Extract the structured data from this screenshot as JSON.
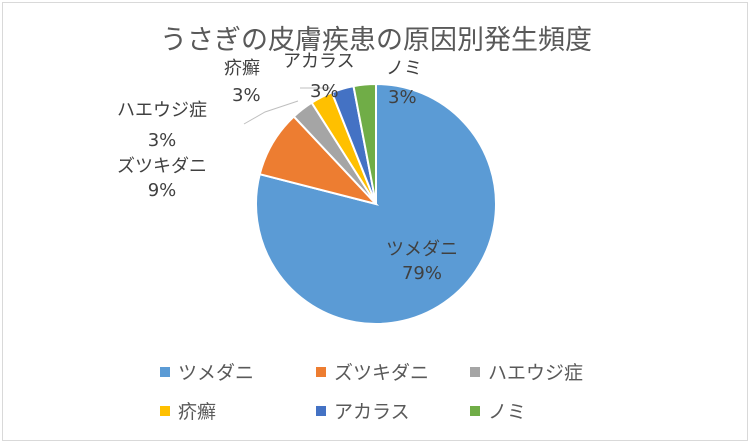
{
  "chart_data": {
    "type": "pie",
    "title": "うさぎの皮膚疾患の原因別発生頻度",
    "legend_position": "bottom",
    "slices": [
      {
        "name": "ツメダニ",
        "value": 79,
        "label": "79%",
        "color": "#5B9BD5"
      },
      {
        "name": "ズツキダニ",
        "value": 9,
        "label": "9%",
        "color": "#ED7D31"
      },
      {
        "name": "ハエウジ症",
        "value": 3,
        "label": "3%",
        "color": "#A5A5A5"
      },
      {
        "name": "疥癬",
        "value": 3,
        "label": "3%",
        "color": "#FFC000"
      },
      {
        "name": "アカラス",
        "value": 3,
        "label": "3%",
        "color": "#4472C4"
      },
      {
        "name": "ノミ",
        "value": 3,
        "label": "3%",
        "color": "#70AD47"
      }
    ]
  }
}
